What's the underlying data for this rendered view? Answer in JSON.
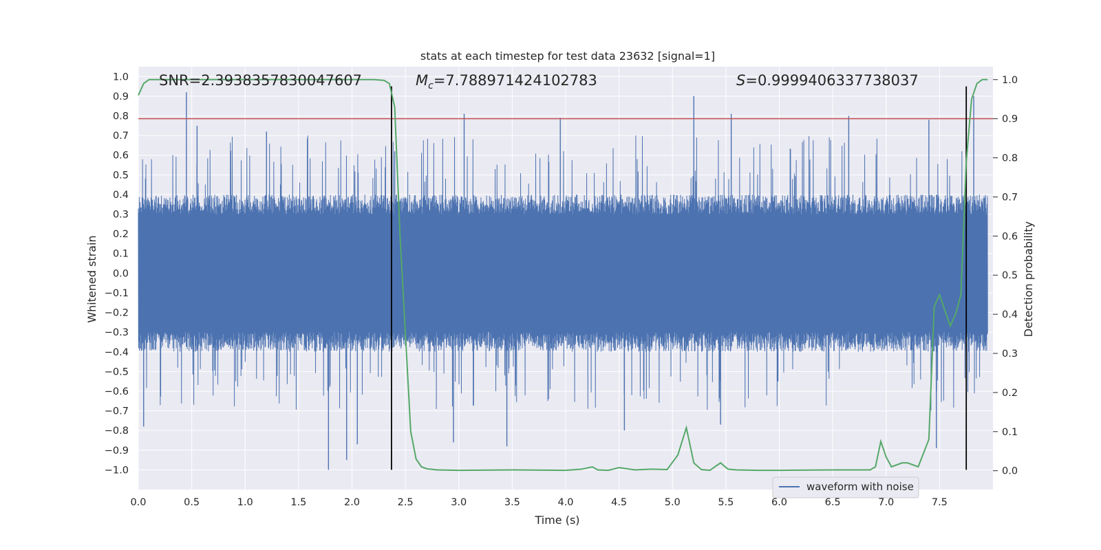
{
  "chart_data": {
    "type": "line",
    "title": "stats at each timestep for test data 23632 [signal=1]",
    "xlabel": "Time (s)",
    "ylabel": "Whitened strain",
    "y2label": "Detection probability",
    "xlim": [
      0.0,
      8.0
    ],
    "ylim": [
      -1.1,
      1.05
    ],
    "y2lim": [
      -0.048,
      1.033
    ],
    "xticks": [
      "0.0",
      "0.5",
      "1.0",
      "1.5",
      "2.0",
      "2.5",
      "3.0",
      "3.5",
      "4.0",
      "4.5",
      "5.0",
      "5.5",
      "6.0",
      "6.5",
      "7.0",
      "7.5"
    ],
    "yticks": [
      "1.0",
      "0.9",
      "0.8",
      "0.7",
      "0.6",
      "0.5",
      "0.4",
      "0.3",
      "0.2",
      "0.1",
      "0.0",
      "-0.1",
      "-0.2",
      "-0.3",
      "-0.4",
      "-0.5",
      "-0.6",
      "-0.7",
      "-0.8",
      "-0.9",
      "-1.0"
    ],
    "y2ticks": [
      "1.0",
      "0.9",
      "0.8",
      "0.7",
      "0.6",
      "0.5",
      "0.4",
      "0.3",
      "0.2",
      "0.1",
      "0.0"
    ],
    "annotations": {
      "snr": "SNR=2.3938357830047607",
      "mc_symbol": "M",
      "mc_sub": "c",
      "mc_value": "=7.788971424102783",
      "s_symbol": "S",
      "s_value": "=0.9999406337738037"
    },
    "threshold": {
      "axis": "right",
      "value": 0.9,
      "color": "#c44e52"
    },
    "event_markers": {
      "x": [
        2.37,
        7.75
      ],
      "y_range": [
        -1.0,
        0.95
      ],
      "color": "#000000"
    },
    "series": [
      {
        "name": "waveform with noise",
        "axis": "left",
        "color": "#4c72b0",
        "description": "dense noisy strain, core band about -0.3 to 0.3 with spikes",
        "envelope": {
          "core": 0.3,
          "spikes": [
            {
              "x": 0.45,
              "y": 0.92
            },
            {
              "x": 0.55,
              "y": 0.75
            },
            {
              "x": 1.2,
              "y": 0.72
            },
            {
              "x": 2.4,
              "y": 0.62
            },
            {
              "x": 3.05,
              "y": 0.81
            },
            {
              "x": 3.95,
              "y": 0.79
            },
            {
              "x": 5.2,
              "y": 0.9
            },
            {
              "x": 5.55,
              "y": 0.81
            },
            {
              "x": 6.65,
              "y": 0.8
            },
            {
              "x": 7.4,
              "y": 0.78
            },
            {
              "x": 7.82,
              "y": 0.9
            },
            {
              "x": 0.05,
              "y": -0.78
            },
            {
              "x": 1.78,
              "y": -1.0
            },
            {
              "x": 1.95,
              "y": -0.95
            },
            {
              "x": 2.05,
              "y": -0.87
            },
            {
              "x": 2.95,
              "y": -0.86
            },
            {
              "x": 3.45,
              "y": -0.88
            },
            {
              "x": 4.55,
              "y": -0.8
            },
            {
              "x": 5.45,
              "y": -0.77
            },
            {
              "x": 7.47,
              "y": -0.89
            }
          ]
        }
      },
      {
        "name": "detection probability",
        "axis": "right",
        "color": "#55a868",
        "x": [
          0.0,
          0.05,
          0.1,
          0.2,
          0.5,
          1.0,
          1.5,
          2.0,
          2.2,
          2.3,
          2.35,
          2.4,
          2.45,
          2.5,
          2.55,
          2.6,
          2.65,
          2.7,
          2.8,
          3.0,
          3.5,
          4.0,
          4.15,
          4.25,
          4.3,
          4.4,
          4.5,
          4.65,
          4.8,
          4.95,
          5.05,
          5.13,
          5.2,
          5.27,
          5.35,
          5.45,
          5.52,
          5.6,
          5.8,
          6.0,
          6.5,
          6.85,
          6.9,
          6.95,
          7.0,
          7.05,
          7.15,
          7.2,
          7.3,
          7.4,
          7.45,
          7.5,
          7.6,
          7.65,
          7.7,
          7.75,
          7.8,
          7.85,
          7.9,
          7.95
        ],
        "y": [
          0.96,
          0.99,
          1.0,
          1.0,
          1.0,
          1.0,
          1.0,
          1.0,
          1.0,
          0.998,
          0.99,
          0.93,
          0.6,
          0.35,
          0.1,
          0.03,
          0.01,
          0.005,
          0.002,
          0.001,
          0.002,
          0.001,
          0.004,
          0.01,
          0.002,
          0.001,
          0.008,
          0.002,
          0.004,
          0.003,
          0.04,
          0.11,
          0.02,
          0.003,
          0.001,
          0.02,
          0.004,
          0.002,
          0.001,
          0.001,
          0.002,
          0.002,
          0.01,
          0.075,
          0.035,
          0.01,
          0.02,
          0.02,
          0.01,
          0.08,
          0.42,
          0.45,
          0.37,
          0.4,
          0.45,
          0.79,
          0.95,
          0.99,
          1.0,
          1.0
        ]
      }
    ],
    "legend": {
      "position": "lower-right",
      "entries": [
        "waveform with noise"
      ]
    }
  }
}
